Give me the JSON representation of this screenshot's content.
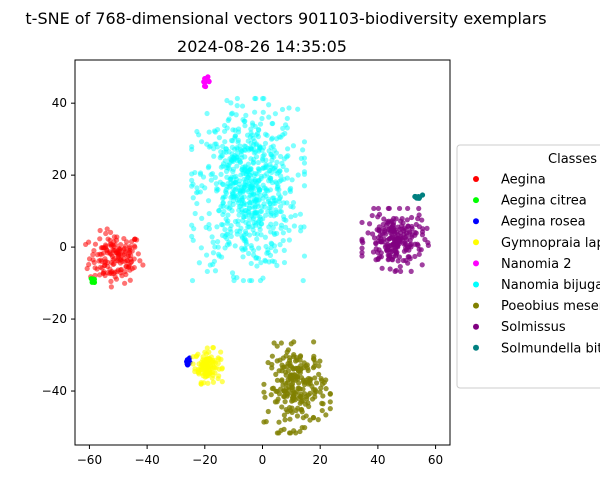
{
  "chart_data": {
    "type": "scatter",
    "title": "t-SNE of 768-dimensional vectors 901103-biodiversity exemplars",
    "subtitle": "2024-08-26 14:35:05",
    "xlabel": "",
    "ylabel": "",
    "xlim": [
      -65,
      65
    ],
    "ylim": [
      -55,
      52
    ],
    "xticks": [
      -60,
      -40,
      -20,
      0,
      20,
      40,
      60
    ],
    "yticks": [
      -40,
      -20,
      0,
      20,
      40
    ],
    "grid": false,
    "legend": {
      "title": "Classes",
      "placement": "outside-right"
    },
    "series": [
      {
        "name": "Aegina",
        "color": "#ff0000",
        "cluster": {
          "cx": -51,
          "cy": -3,
          "sx": 4.5,
          "sy": 3.5,
          "n": 160,
          "alpha": 0.55
        }
      },
      {
        "name": "Aegina citrea",
        "color": "#00ff00",
        "cluster": {
          "cx": -58.5,
          "cy": -9,
          "sx": 0.5,
          "sy": 0.6,
          "n": 6,
          "alpha": 1.0
        }
      },
      {
        "name": "Aegina rosea",
        "color": "#0000ff",
        "cluster": {
          "cx": -26,
          "cy": -32,
          "sx": 0.5,
          "sy": 0.8,
          "n": 8,
          "alpha": 1.0
        }
      },
      {
        "name": "Gymnopraia lapislazula",
        "color": "#ffff00",
        "cluster": {
          "cx": -19,
          "cy": -33,
          "sx": 2.2,
          "sy": 2.2,
          "n": 110,
          "alpha": 0.65
        }
      },
      {
        "name": "Nanomia 2",
        "color": "#ff00ff",
        "cluster": {
          "cx": -19.5,
          "cy": 46,
          "sx": 0.6,
          "sy": 0.6,
          "n": 10,
          "alpha": 1.0
        }
      },
      {
        "name": "Nanomia bijuga",
        "color": "#00ffff",
        "cluster": {
          "cx": -5,
          "cy": 16,
          "sx": 8.5,
          "sy": 11,
          "n": 700,
          "alpha": 0.5
        }
      },
      {
        "name": "Poeobius meseres",
        "color": "#808000",
        "cluster": {
          "cx": 12,
          "cy": -39,
          "sx": 5,
          "sy": 5.5,
          "n": 230,
          "alpha": 0.8
        }
      },
      {
        "name": "Solmissus",
        "color": "#800080",
        "cluster": {
          "cx": 46,
          "cy": 2,
          "sx": 5,
          "sy": 3.8,
          "n": 220,
          "alpha": 0.75
        }
      },
      {
        "name": "Solmundella bitentaculata",
        "color": "#008080",
        "cluster": {
          "cx": 54,
          "cy": 14,
          "sx": 0.7,
          "sy": 0.4,
          "n": 12,
          "alpha": 1.0
        }
      }
    ]
  }
}
